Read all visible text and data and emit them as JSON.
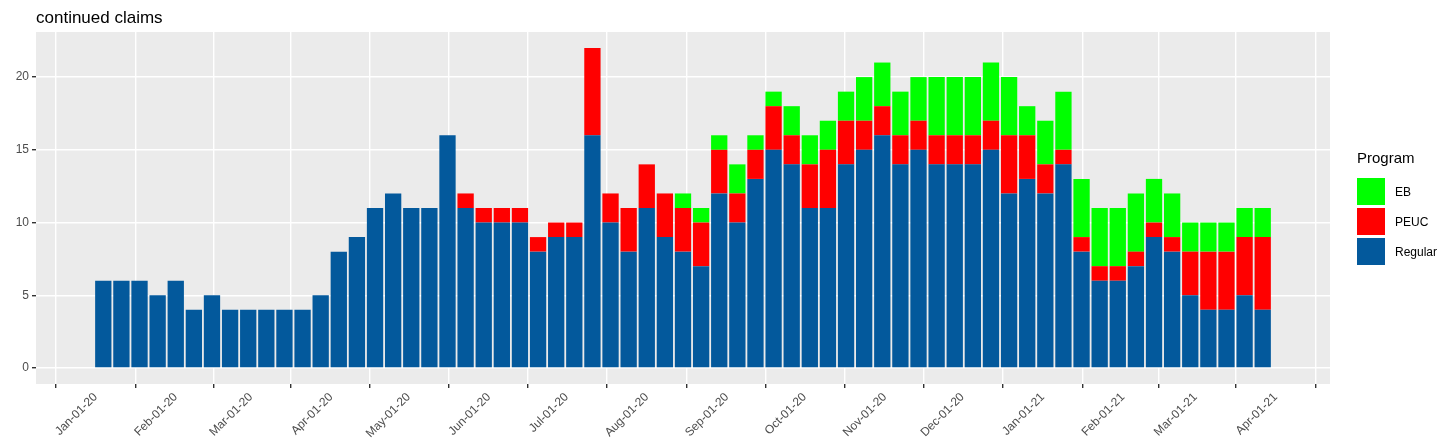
{
  "chart_data": {
    "type": "bar",
    "title": "continued claims",
    "stacked": true,
    "grid": true,
    "legend": "right",
    "legend_title": "Program",
    "x": [
      "2020-01-04",
      "2020-01-11",
      "2020-01-18",
      "2020-01-25",
      "2020-02-01",
      "2020-02-08",
      "2020-02-15",
      "2020-02-22",
      "2020-02-29",
      "2020-03-07",
      "2020-03-14",
      "2020-03-21",
      "2020-03-28",
      "2020-04-04",
      "2020-04-11",
      "2020-04-18",
      "2020-04-25",
      "2020-05-02",
      "2020-05-09",
      "2020-05-16",
      "2020-05-23",
      "2020-05-30",
      "2020-06-06",
      "2020-06-13",
      "2020-06-20",
      "2020-06-27",
      "2020-07-04",
      "2020-07-11",
      "2020-07-18",
      "2020-07-25",
      "2020-08-01",
      "2020-08-08",
      "2020-08-15",
      "2020-08-22",
      "2020-08-29",
      "2020-09-05",
      "2020-09-12",
      "2020-09-19",
      "2020-09-26",
      "2020-10-03",
      "2020-10-10",
      "2020-10-17",
      "2020-10-24",
      "2020-10-31",
      "2020-11-07",
      "2020-11-14",
      "2020-11-21",
      "2020-11-28",
      "2020-12-05",
      "2020-12-12",
      "2020-12-19",
      "2020-12-26",
      "2021-01-02",
      "2021-01-09",
      "2021-01-16",
      "2021-01-23",
      "2021-01-30",
      "2021-02-06",
      "2021-02-13",
      "2021-02-20",
      "2021-02-27",
      "2021-03-06",
      "2021-03-13",
      "2021-03-20",
      "2021-03-27"
    ],
    "series": [
      {
        "name": "Regular",
        "color": "#03599c",
        "values": [
          6,
          6,
          6,
          5,
          6,
          4,
          5,
          4,
          4,
          4,
          4,
          4,
          5,
          8,
          9,
          11,
          12,
          11,
          11,
          16,
          11,
          10,
          10,
          10,
          8,
          9,
          9,
          16,
          10,
          8,
          11,
          9,
          8,
          7,
          12,
          10,
          13,
          15,
          14,
          11,
          11,
          14,
          15,
          16,
          14,
          15,
          14,
          14,
          14,
          15,
          12,
          13,
          12,
          14,
          8,
          6,
          6,
          7,
          9,
          8,
          5,
          4,
          4,
          5,
          4
        ]
      },
      {
        "name": "PEUC",
        "color": "#ff0000",
        "values": [
          null,
          null,
          null,
          null,
          null,
          null,
          null,
          null,
          null,
          null,
          null,
          null,
          null,
          null,
          null,
          null,
          null,
          null,
          null,
          null,
          1,
          1,
          1,
          1,
          1,
          1,
          1,
          6,
          2,
          3,
          3,
          3,
          3,
          3,
          3,
          2,
          2,
          3,
          2,
          3,
          4,
          3,
          2,
          2,
          2,
          2,
          2,
          2,
          2,
          2,
          4,
          3,
          2,
          1,
          1,
          1,
          1,
          1,
          1,
          1,
          3,
          4,
          4,
          4,
          5
        ]
      },
      {
        "name": "EB",
        "color": "#00ff00",
        "values": [
          null,
          null,
          null,
          null,
          null,
          null,
          null,
          null,
          null,
          null,
          null,
          null,
          null,
          null,
          null,
          null,
          null,
          null,
          null,
          null,
          null,
          null,
          null,
          null,
          null,
          null,
          null,
          null,
          null,
          null,
          null,
          null,
          1,
          1,
          1,
          2,
          1,
          1,
          2,
          2,
          2,
          2,
          3,
          3,
          3,
          3,
          4,
          4,
          4,
          4,
          4,
          2,
          3,
          4,
          4,
          4,
          4,
          4,
          3,
          3,
          2,
          2,
          2,
          2,
          2
        ]
      }
    ],
    "xlim": [
      "2019-12-09",
      "2021-04-22"
    ],
    "xticks": [
      {
        "value": "2020-01-01",
        "label": "Jan-01-20"
      },
      {
        "value": "2020-02-01",
        "label": "Feb-01-20"
      },
      {
        "value": "2020-03-01",
        "label": "Mar-01-20"
      },
      {
        "value": "2020-04-01",
        "label": "Apr-01-20"
      },
      {
        "value": "2020-05-01",
        "label": "May-01-20"
      },
      {
        "value": "2020-06-01",
        "label": "Jun-01-20"
      },
      {
        "value": "2020-07-01",
        "label": "Jul-01-20"
      },
      {
        "value": "2020-08-01",
        "label": "Aug-01-20"
      },
      {
        "value": "2020-09-01",
        "label": "Sep-01-20"
      },
      {
        "value": "2020-10-01",
        "label": "Oct-01-20"
      },
      {
        "value": "2020-11-01",
        "label": "Nov-01-20"
      },
      {
        "value": "2020-12-01",
        "label": "Dec-01-20"
      },
      {
        "value": "2021-01-01",
        "label": "Jan-01-21"
      },
      {
        "value": "2021-02-01",
        "label": "Feb-01-21"
      },
      {
        "value": "2021-03-01",
        "label": "Mar-01-21"
      },
      {
        "value": "2021-04-01",
        "label": "Apr-01-21"
      }
    ],
    "ylim": [
      -1.1,
      23.1
    ],
    "yticks": [
      0,
      5,
      10,
      15,
      20
    ]
  }
}
